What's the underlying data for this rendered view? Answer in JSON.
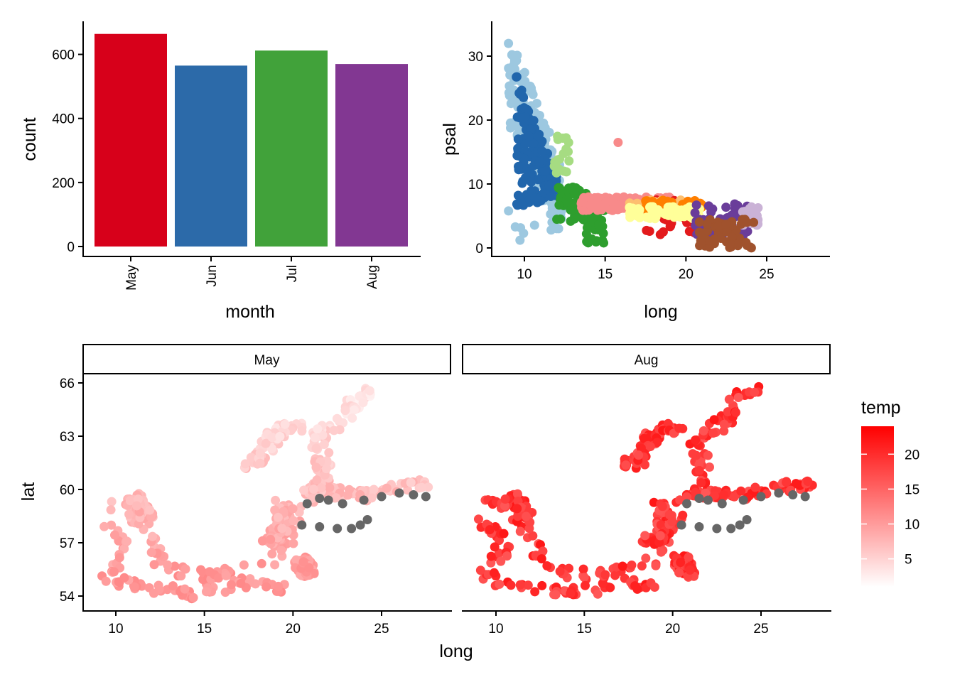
{
  "chart_data": [
    {
      "type": "bar",
      "xlabel": "month",
      "ylabel": "count",
      "categories": [
        "May",
        "Jun",
        "Jul",
        "Aug"
      ],
      "values": [
        664,
        565,
        612,
        570
      ],
      "colors": [
        "#D7001A",
        "#2C6AA9",
        "#41A23A",
        "#823792"
      ],
      "ylim": [
        0,
        700
      ],
      "yticks": [
        0,
        200,
        400,
        600
      ],
      "grid": false
    },
    {
      "type": "scatter",
      "xlabel": "long",
      "ylabel": "psal",
      "xlim": [
        8,
        29
      ],
      "ylim": [
        -1.5,
        35.5
      ],
      "xticks": [
        10,
        15,
        20,
        25
      ],
      "yticks": [
        0,
        10,
        20,
        30
      ],
      "grid": false,
      "clusters": [
        {
          "color": "#9DC8E0",
          "long": [
            9,
            12.3
          ],
          "psal": [
            1,
            33.5
          ],
          "n": 180,
          "trend": "upper"
        },
        {
          "color": "#2166AC",
          "long": [
            9.5,
            12.2
          ],
          "psal": [
            5,
            27
          ],
          "n": 170,
          "trend": "mid"
        },
        {
          "color": "#A6DC82",
          "long": [
            11.8,
            12.8
          ],
          "psal": [
            8,
            17.5
          ],
          "n": 18,
          "trend": "flat"
        },
        {
          "color": "#2E9E2E",
          "long": [
            12,
            15
          ],
          "psal": [
            0.5,
            11
          ],
          "n": 90,
          "trend": "drop"
        },
        {
          "color": "#F88A8A",
          "long": [
            13.5,
            19
          ],
          "psal": [
            5.8,
            8
          ],
          "n": 120,
          "trend": "flat"
        },
        {
          "color": "#F88A8A",
          "long": [
            15.8,
            15.8
          ],
          "psal": [
            16.5,
            16.5
          ],
          "n": 1,
          "trend": "flat"
        },
        {
          "color": "#E31A1C",
          "long": [
            17.5,
            21
          ],
          "psal": [
            2,
            7.5
          ],
          "n": 45,
          "trend": "flat"
        },
        {
          "color": "#FDBF6F",
          "long": [
            16.5,
            20
          ],
          "psal": [
            5.5,
            7.5
          ],
          "n": 40,
          "trend": "flat"
        },
        {
          "color": "#FF7F00",
          "long": [
            17.5,
            21
          ],
          "psal": [
            5.5,
            7.5
          ],
          "n": 50,
          "trend": "flat"
        },
        {
          "color": "#FFFF99",
          "long": [
            16.5,
            21
          ],
          "psal": [
            4.5,
            6.5
          ],
          "n": 50,
          "trend": "flat"
        },
        {
          "color": "#6A3D9A",
          "long": [
            20.5,
            24
          ],
          "psal": [
            1.5,
            7
          ],
          "n": 60,
          "trend": "flat"
        },
        {
          "color": "#CAB2D6",
          "long": [
            23.5,
            24.6
          ],
          "psal": [
            3.5,
            6.5
          ],
          "n": 25,
          "trend": "flat"
        },
        {
          "color": "#A0522D",
          "long": [
            20.5,
            24.2
          ],
          "psal": [
            0,
            4.5
          ],
          "n": 60,
          "trend": "flat"
        }
      ]
    },
    {
      "type": "scatter",
      "facets": [
        "May",
        "Aug"
      ],
      "xlabel": "long",
      "ylabel": "lat",
      "xlim": [
        8,
        29
      ],
      "ylim": [
        53.1,
        66.9
      ],
      "xticks": [
        10,
        15,
        20,
        25
      ],
      "yticks": [
        54,
        57,
        60,
        63,
        66
      ],
      "grid": false,
      "legend": {
        "title": "temp",
        "position": "right",
        "ticks": [
          5,
          10,
          15,
          20
        ],
        "range": [
          1,
          24
        ],
        "low_color": "#FFFFFF",
        "high_color": "#FF0000"
      },
      "na_color": "#666666",
      "na_points": [
        [
          20.5,
          58
        ],
        [
          21.5,
          57.9
        ],
        [
          22.5,
          57.8
        ],
        [
          23.3,
          57.8
        ],
        [
          23.8,
          58
        ],
        [
          24.2,
          58.3
        ],
        [
          22,
          59.4
        ],
        [
          22.8,
          59.2
        ],
        [
          24,
          59.4
        ],
        [
          25,
          59.6
        ],
        [
          26,
          59.8
        ],
        [
          26.8,
          59.7
        ],
        [
          27.5,
          59.6
        ],
        [
          21.5,
          59.5
        ],
        [
          20.8,
          59.2
        ]
      ],
      "may_temp": [
        3,
        11
      ],
      "aug_temp": [
        16,
        22
      ]
    }
  ]
}
